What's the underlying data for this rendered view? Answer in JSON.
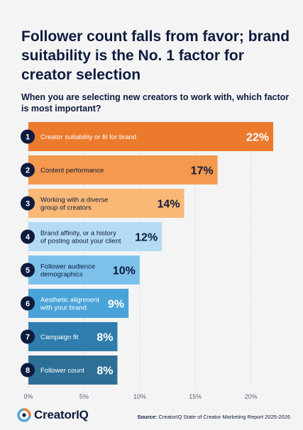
{
  "title": "Follower count falls from favor; brand suitability is the No. 1 factor for creator selection",
  "question": {
    "part1": "When you are selecting new creators to work with, which factor is ",
    "part2": "most important",
    "part3": "?"
  },
  "chart_data": {
    "type": "bar",
    "orientation": "horizontal",
    "categories": [
      [
        "Creator suitability or fit for brand"
      ],
      [
        "Content performance"
      ],
      [
        "Working with a diverse",
        "group of creators"
      ],
      [
        "Brand affinity, or a history",
        "of posting about your client"
      ],
      [
        "Follower audience",
        "demographics"
      ],
      [
        "Aesthetic alignment",
        "with your brand"
      ],
      [
        "Campaign fit"
      ],
      [
        "Follower count"
      ]
    ],
    "ranks": [
      "1",
      "2",
      "3",
      "4",
      "5",
      "6",
      "7",
      "8"
    ],
    "values": [
      22,
      17,
      14,
      12,
      10,
      9,
      8,
      8
    ],
    "value_labels": [
      "22%",
      "17%",
      "14%",
      "12%",
      "10%",
      "9%",
      "8%",
      "8%"
    ],
    "bar_colors": [
      "#ec7a2c",
      "#f4994d",
      "#f9b876",
      "#b3dcf2",
      "#7dc1ea",
      "#4aa3d8",
      "#2f7cae",
      "#2e6f98"
    ],
    "label_colors": [
      "#ffffff",
      "#0d1b3e",
      "#0d1b3e",
      "#0d1b3e",
      "#0d1b3e",
      "#ffffff",
      "#ffffff",
      "#ffffff"
    ],
    "xlim": [
      0,
      22.7
    ],
    "xticks": [
      0,
      5,
      10,
      15,
      20
    ],
    "xtick_labels": [
      "0%",
      "5%",
      "10%",
      "15%",
      "20%"
    ]
  },
  "footer": {
    "brand": "CreatorIQ",
    "source_label": "Source:",
    "source_text": "CreatorIQ State of Creator Marketing Report 2025-2026"
  }
}
